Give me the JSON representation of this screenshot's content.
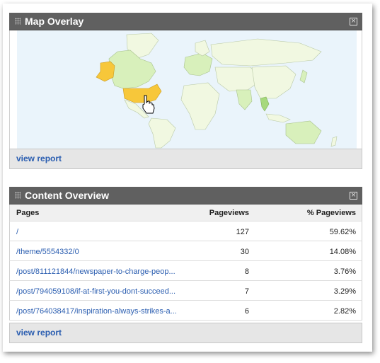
{
  "map_widget": {
    "title": "Map Overlay",
    "footer_link": "view report",
    "colors": {
      "ocean": "#eaf4fb",
      "land": "#f1f8e1",
      "low": "#d8f0bb",
      "mid": "#a6d97c",
      "high": "#f7c73a"
    }
  },
  "content_widget": {
    "title": "Content Overview",
    "columns": [
      "Pages",
      "Pageviews",
      "% Pageviews"
    ],
    "rows": [
      {
        "page": "/",
        "pageviews": "127",
        "percent": "59.62%"
      },
      {
        "page": "/theme/5554332/0",
        "pageviews": "30",
        "percent": "14.08%"
      },
      {
        "page": "/post/811121844/newspaper-to-charge-peop...",
        "pageviews": "8",
        "percent": "3.76%"
      },
      {
        "page": "/post/794059108/if-at-first-you-dont-succeed...",
        "pageviews": "7",
        "percent": "3.29%"
      },
      {
        "page": "/post/764038417/inspiration-always-strikes-a...",
        "pageviews": "6",
        "percent": "2.82%"
      }
    ],
    "footer_link": "view report"
  }
}
